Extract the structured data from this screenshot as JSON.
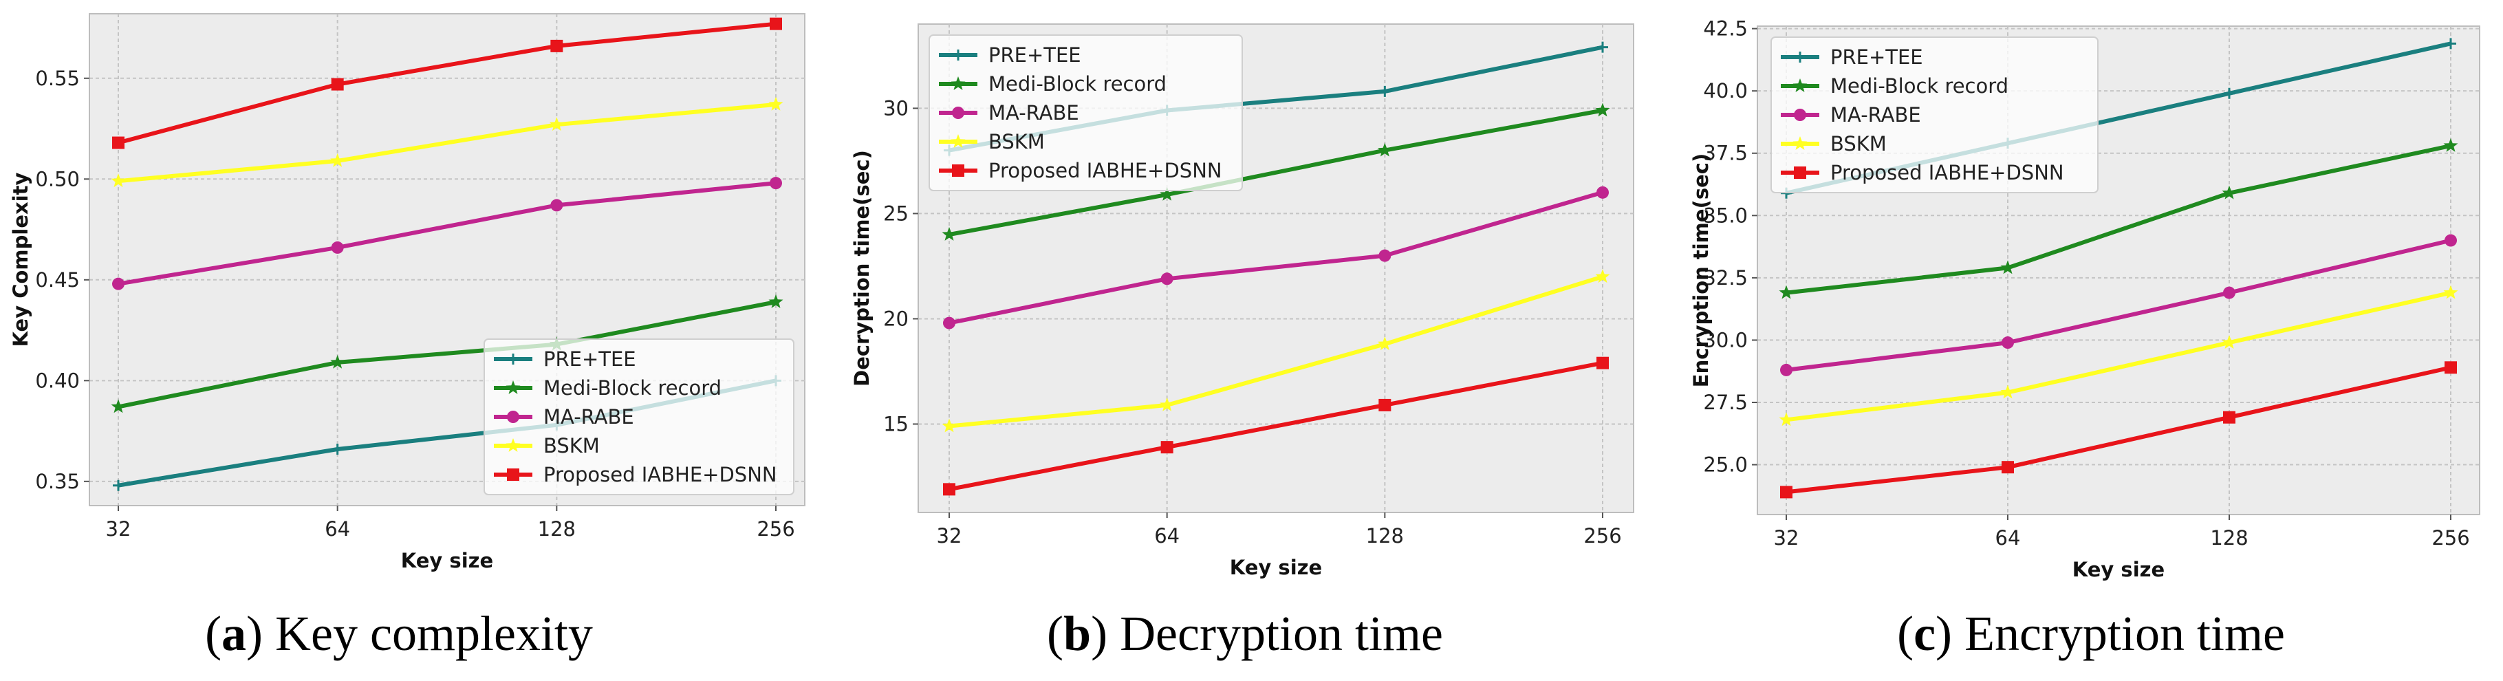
{
  "colors": {
    "pre_tee": "#1a7f7f",
    "medi_block": "#1f8a1f",
    "ma_rabe": "#c0258f",
    "bskm": "#ffff22",
    "iabhe": "#e8141a",
    "plot_bg": "#ececec",
    "grid": "#c4c4c4"
  },
  "chart_data": [
    {
      "type": "line",
      "caption_letter": "a",
      "caption_text": "Key complexity",
      "xlabel": "Key size",
      "ylabel": "Key Complexity",
      "categories": [
        "32",
        "64",
        "128",
        "256"
      ],
      "ylim": [
        0.338,
        0.582
      ],
      "yticks": [
        "0.35",
        "0.40",
        "0.45",
        "0.50",
        "0.55"
      ],
      "legend_loc": "lower-right",
      "series": [
        {
          "name": "PRE+TEE",
          "marker": "plus",
          "values": [
            0.348,
            0.366,
            0.378,
            0.4
          ]
        },
        {
          "name": "Medi-Block record",
          "marker": "star",
          "values": [
            0.387,
            0.409,
            0.418,
            0.439
          ]
        },
        {
          "name": "MA-RABE",
          "marker": "circle",
          "values": [
            0.448,
            0.466,
            0.487,
            0.498
          ]
        },
        {
          "name": "BSKM",
          "marker": "star",
          "values": [
            0.499,
            0.509,
            0.527,
            0.537
          ]
        },
        {
          "name": "Proposed IABHE+DSNN",
          "marker": "square",
          "values": [
            0.518,
            0.547,
            0.566,
            0.577
          ]
        }
      ]
    },
    {
      "type": "line",
      "caption_letter": "b",
      "caption_text": "Decryption time",
      "xlabel": "Key size",
      "ylabel": "Decryption time(sec)",
      "categories": [
        "32",
        "64",
        "128",
        "256"
      ],
      "ylim": [
        10.8,
        34.0
      ],
      "yticks": [
        "15",
        "20",
        "25",
        "30"
      ],
      "legend_loc": "top-left",
      "series": [
        {
          "name": "PRE+TEE",
          "marker": "plus",
          "values": [
            28.0,
            29.9,
            30.8,
            32.9
          ]
        },
        {
          "name": "Medi-Block record",
          "marker": "star",
          "values": [
            24.0,
            25.9,
            28.0,
            29.9
          ]
        },
        {
          "name": "MA-RABE",
          "marker": "circle",
          "values": [
            19.8,
            21.9,
            23.0,
            26.0
          ]
        },
        {
          "name": "BSKM",
          "marker": "star",
          "values": [
            14.9,
            15.9,
            18.8,
            22.0
          ]
        },
        {
          "name": "Proposed IABHE+DSNN",
          "marker": "square",
          "values": [
            11.9,
            13.9,
            15.9,
            17.9
          ]
        }
      ]
    },
    {
      "type": "line",
      "caption_letter": "c",
      "caption_text": "Encryption time",
      "xlabel": "Key size",
      "ylabel": "Encryption time(sec)",
      "categories": [
        "32",
        "64",
        "128",
        "256"
      ],
      "ylim": [
        23.0,
        42.6
      ],
      "yticks": [
        "25.0",
        "27.5",
        "30.0",
        "32.5",
        "35.0",
        "37.5",
        "40.0",
        "42.5"
      ],
      "legend_loc": "top-left",
      "series": [
        {
          "name": "PRE+TEE",
          "marker": "plus",
          "values": [
            35.9,
            37.9,
            39.9,
            41.9
          ]
        },
        {
          "name": "Medi-Block record",
          "marker": "star",
          "values": [
            31.9,
            32.9,
            35.9,
            37.8
          ]
        },
        {
          "name": "MA-RABE",
          "marker": "circle",
          "values": [
            28.8,
            29.9,
            31.9,
            34.0
          ]
        },
        {
          "name": "BSKM",
          "marker": "star",
          "values": [
            26.8,
            27.9,
            29.9,
            31.9
          ]
        },
        {
          "name": "Proposed IABHE+DSNN",
          "marker": "square",
          "values": [
            23.9,
            24.9,
            26.9,
            28.9
          ]
        }
      ]
    }
  ]
}
